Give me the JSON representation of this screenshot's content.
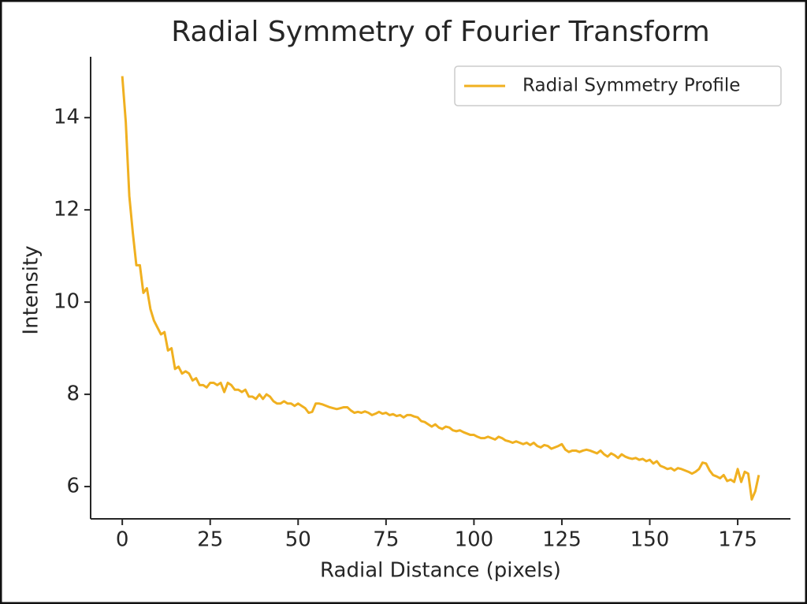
{
  "chart_data": {
    "type": "line",
    "title": "Radial Symmetry of Fourier Transform",
    "x_label": "Radial Distance (pixels)",
    "y_label": "Intensity",
    "x": [
      0,
      1,
      2,
      3,
      4,
      5,
      6,
      7,
      8,
      9,
      10,
      11,
      12,
      13,
      14,
      15,
      16,
      17,
      18,
      19,
      20,
      21,
      22,
      23,
      24,
      25,
      26,
      27,
      28,
      29,
      30,
      31,
      32,
      33,
      34,
      35,
      36,
      37,
      38,
      39,
      40,
      41,
      42,
      43,
      44,
      45,
      46,
      47,
      48,
      49,
      50,
      51,
      52,
      53,
      54,
      55,
      56,
      57,
      58,
      59,
      60,
      61,
      62,
      63,
      64,
      65,
      66,
      67,
      68,
      69,
      70,
      71,
      72,
      73,
      74,
      75,
      76,
      77,
      78,
      79,
      80,
      81,
      82,
      83,
      84,
      85,
      86,
      87,
      88,
      89,
      90,
      91,
      92,
      93,
      94,
      95,
      96,
      97,
      98,
      99,
      100,
      101,
      102,
      103,
      104,
      105,
      106,
      107,
      108,
      109,
      110,
      111,
      112,
      113,
      114,
      115,
      116,
      117,
      118,
      119,
      120,
      121,
      122,
      123,
      124,
      125,
      126,
      127,
      128,
      129,
      130,
      131,
      132,
      133,
      134,
      135,
      136,
      137,
      138,
      139,
      140,
      141,
      142,
      143,
      144,
      145,
      146,
      147,
      148,
      149,
      150,
      151,
      152,
      153,
      154,
      155,
      156,
      157,
      158,
      159,
      160,
      161,
      162,
      163,
      164,
      165,
      166,
      167,
      168,
      169,
      170,
      171,
      172,
      173,
      174,
      175,
      176,
      177,
      178,
      179,
      180,
      181
    ],
    "series": [
      {
        "name": "Radial Symmetry Profile",
        "color": "#f0b020",
        "values": [
          14.9,
          13.9,
          12.3,
          11.5,
          10.8,
          10.8,
          10.2,
          10.3,
          9.85,
          9.6,
          9.45,
          9.3,
          9.35,
          8.95,
          9.0,
          8.55,
          8.6,
          8.45,
          8.5,
          8.45,
          8.3,
          8.35,
          8.2,
          8.2,
          8.15,
          8.25,
          8.25,
          8.2,
          8.25,
          8.05,
          8.25,
          8.2,
          8.1,
          8.1,
          8.05,
          8.1,
          7.95,
          7.95,
          7.9,
          8.0,
          7.9,
          8.0,
          7.95,
          7.85,
          7.8,
          7.8,
          7.85,
          7.8,
          7.8,
          7.75,
          7.8,
          7.75,
          7.7,
          7.6,
          7.62,
          7.8,
          7.8,
          7.78,
          7.75,
          7.72,
          7.7,
          7.68,
          7.7,
          7.72,
          7.72,
          7.65,
          7.6,
          7.62,
          7.6,
          7.63,
          7.6,
          7.55,
          7.58,
          7.62,
          7.58,
          7.6,
          7.55,
          7.57,
          7.53,
          7.55,
          7.5,
          7.55,
          7.55,
          7.52,
          7.5,
          7.42,
          7.4,
          7.35,
          7.3,
          7.35,
          7.28,
          7.25,
          7.3,
          7.28,
          7.22,
          7.2,
          7.22,
          7.18,
          7.15,
          7.12,
          7.12,
          7.08,
          7.05,
          7.05,
          7.08,
          7.05,
          7.02,
          7.08,
          7.05,
          7.0,
          6.98,
          6.95,
          6.98,
          6.95,
          6.92,
          6.95,
          6.9,
          6.95,
          6.88,
          6.85,
          6.9,
          6.88,
          6.82,
          6.85,
          6.88,
          6.92,
          6.8,
          6.75,
          6.78,
          6.78,
          6.75,
          6.78,
          6.8,
          6.78,
          6.75,
          6.72,
          6.78,
          6.7,
          6.65,
          6.72,
          6.68,
          6.62,
          6.7,
          6.65,
          6.62,
          6.6,
          6.62,
          6.58,
          6.6,
          6.55,
          6.58,
          6.5,
          6.55,
          6.45,
          6.42,
          6.38,
          6.4,
          6.35,
          6.4,
          6.38,
          6.35,
          6.32,
          6.28,
          6.32,
          6.38,
          6.52,
          6.5,
          6.35,
          6.25,
          6.22,
          6.18,
          6.25,
          6.12,
          6.15,
          6.1,
          6.38,
          6.1,
          6.32,
          6.28,
          5.72,
          5.9,
          6.25
        ]
      }
    ],
    "xlim": [
      -9,
      190
    ],
    "ylim": [
      5.3,
      15.32
    ],
    "xticks": [
      0,
      25,
      50,
      75,
      100,
      125,
      150,
      175
    ],
    "yticks": [
      6,
      8,
      10,
      12,
      14
    ],
    "legend": "upper right",
    "grid": false
  }
}
